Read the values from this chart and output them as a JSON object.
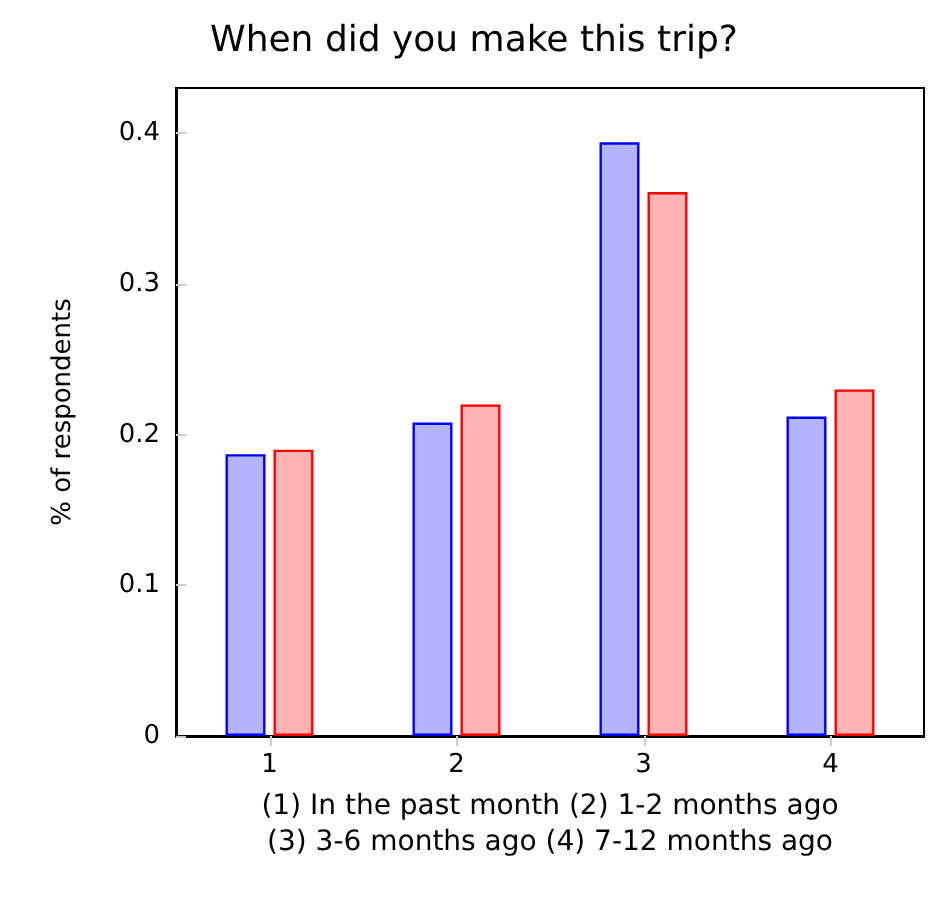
{
  "chart_data": {
    "type": "bar",
    "title": "When did you make this trip?",
    "xlabel": "(1) In the past month (2) 1-2 months ago\n(3) 3-6 months ago (4) 7-12 months ago",
    "ylabel": "% of respondents",
    "categories": [
      "1",
      "2",
      "3",
      "4"
    ],
    "series": [
      {
        "color": "#0000ff",
        "values": [
          0.187,
          0.208,
          0.394,
          0.212
        ]
      },
      {
        "color": "#ff0000",
        "values": [
          0.19,
          0.22,
          0.361,
          0.23
        ]
      }
    ],
    "ylim": [
      0,
      0.43
    ],
    "yticks": [
      0,
      0.1,
      0.2,
      0.3,
      0.4
    ]
  }
}
